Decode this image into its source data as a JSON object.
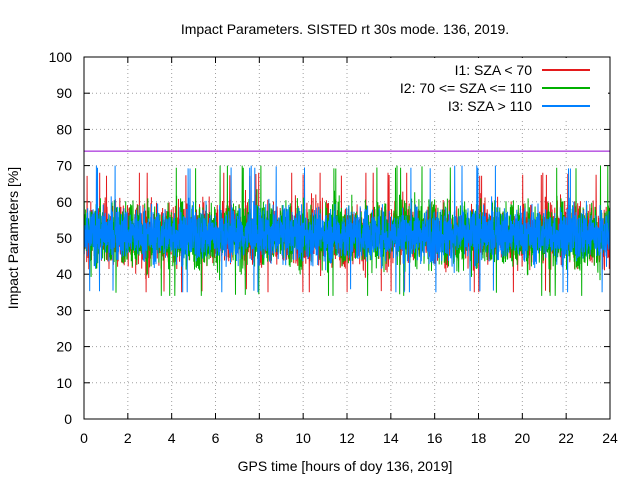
{
  "chart_data": {
    "type": "line",
    "title": "Impact Parameters. SISTED rt 30s mode. 136, 2019.",
    "xlabel": "GPS time [hours of doy 136, 2019]",
    "ylabel": "Impact Parameters [%]",
    "xlim": [
      0,
      24
    ],
    "ylim": [
      0,
      100
    ],
    "xticks": [
      "0",
      "2",
      "4",
      "6",
      "8",
      "10",
      "12",
      "14",
      "16",
      "18",
      "20",
      "22",
      "24"
    ],
    "yticks": [
      "0",
      "10",
      "20",
      "30",
      "40",
      "50",
      "60",
      "70",
      "80",
      "90",
      "100"
    ],
    "grid": true,
    "legend_position": "top-right",
    "reference_line": {
      "y": 74,
      "color": "#9400d3"
    },
    "series": [
      {
        "name": "I1: SZA < 70",
        "color": "#e41a1c",
        "mean": 51,
        "typical_range": [
          42,
          60
        ],
        "extremes": [
          35,
          68
        ]
      },
      {
        "name": "I2: 70 <= SZA <= 110",
        "color": "#00b000",
        "mean": 51,
        "typical_range": [
          42,
          61
        ],
        "extremes": [
          34,
          70
        ]
      },
      {
        "name": "I3: SZA > 110",
        "color": "#0080ff",
        "mean": 51,
        "typical_range": [
          43,
          59
        ],
        "extremes": [
          35,
          70
        ]
      }
    ]
  }
}
